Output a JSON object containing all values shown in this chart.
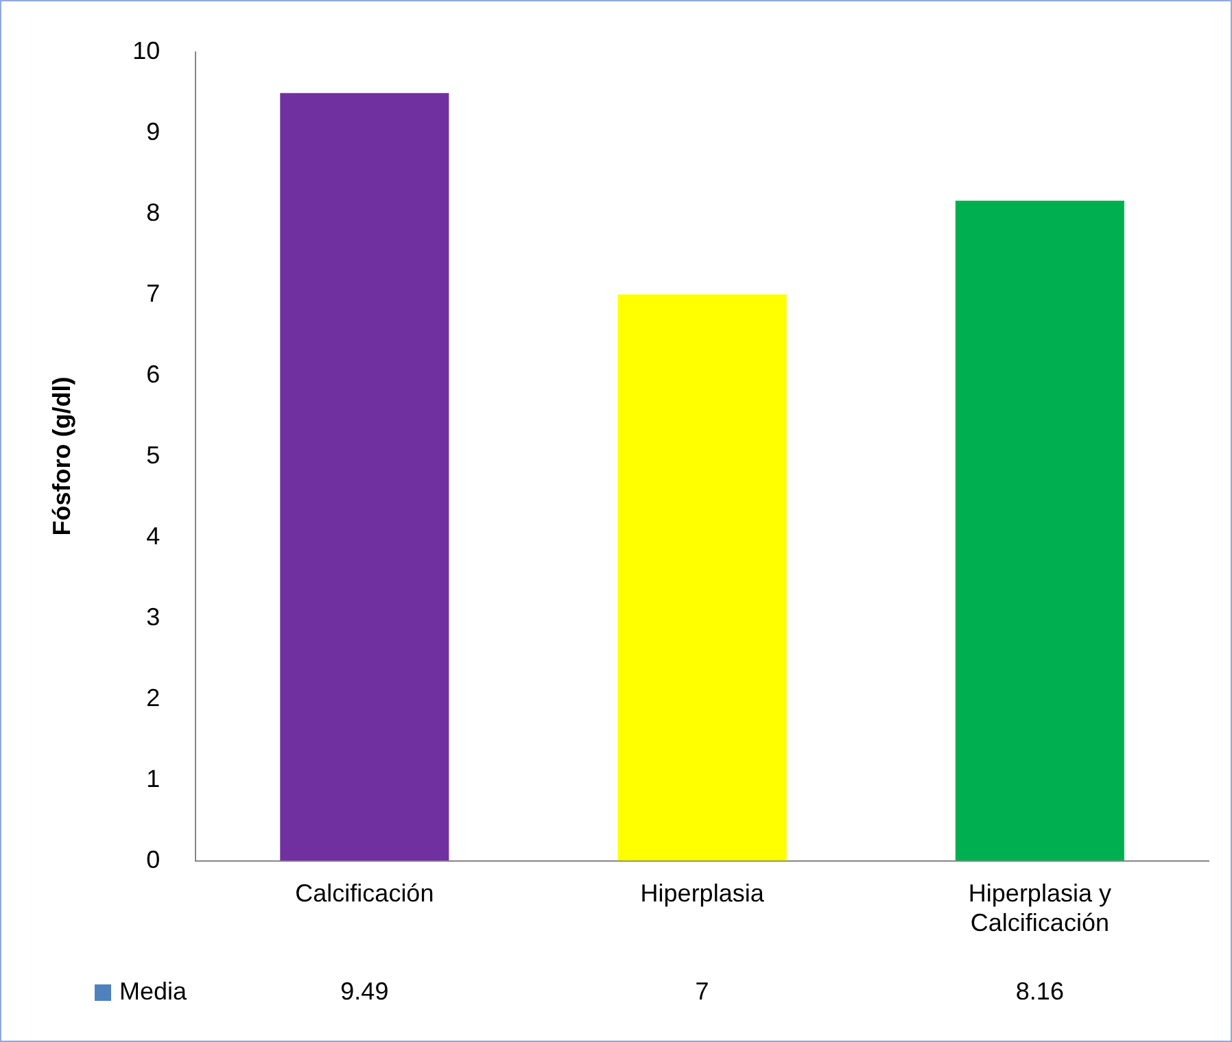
{
  "chart_data": {
    "type": "bar",
    "ylabel": "Fósforo (g/dl)",
    "categories": [
      "Calcificación",
      "Hiperplasia",
      "Hiperplasia y Calcificación"
    ],
    "series": [
      {
        "name": "Media",
        "color": "#4f81bd",
        "colors": [
          "#7030a0",
          "#ffff00",
          "#00b050"
        ],
        "values": [
          9.49,
          7,
          8.16
        ]
      }
    ],
    "ylim": [
      0,
      10
    ],
    "yticks": [
      0,
      1,
      2,
      3,
      4,
      5,
      6,
      7,
      8,
      9,
      10
    ],
    "grid": false,
    "legend": "bottom",
    "data_labels": true
  }
}
